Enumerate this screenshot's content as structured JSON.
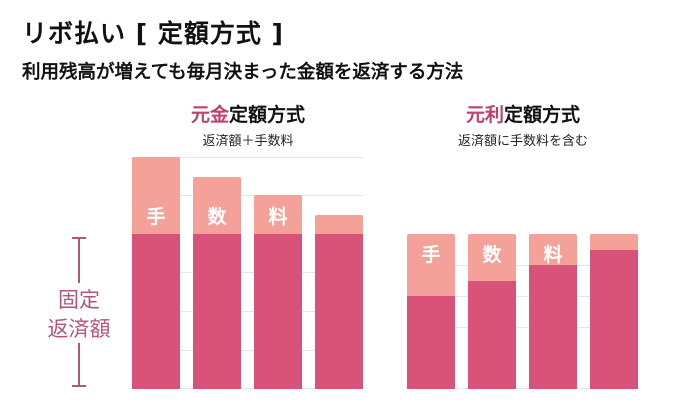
{
  "title": "リボ払い [ 定額方式 ]",
  "subtitle": "利用残高が増えても毎月決まった金額を返済する方法",
  "colors": {
    "principal": "#d9527a",
    "fee": "#f4a19a",
    "accent": "#c0406e",
    "side_label": "#b5537d"
  },
  "left_chart": {
    "title_accent": "元金",
    "title_rest": "定額方式",
    "caption": "返済額＋手数料",
    "side_label_line1": "固定",
    "side_label_line2": "返済額",
    "fee_labels": [
      "手",
      "数",
      "料",
      ""
    ],
    "principal": [
      100,
      100,
      100,
      100
    ],
    "fee": [
      50,
      37,
      25,
      12
    ]
  },
  "right_chart": {
    "title_accent": "元利",
    "title_rest": "定額方式",
    "caption": "返済額に手数料を含む",
    "fee_labels": [
      "手",
      "数",
      "料",
      ""
    ],
    "principal": [
      60,
      70,
      80,
      90
    ],
    "fee": [
      40,
      30,
      20,
      10
    ]
  }
}
